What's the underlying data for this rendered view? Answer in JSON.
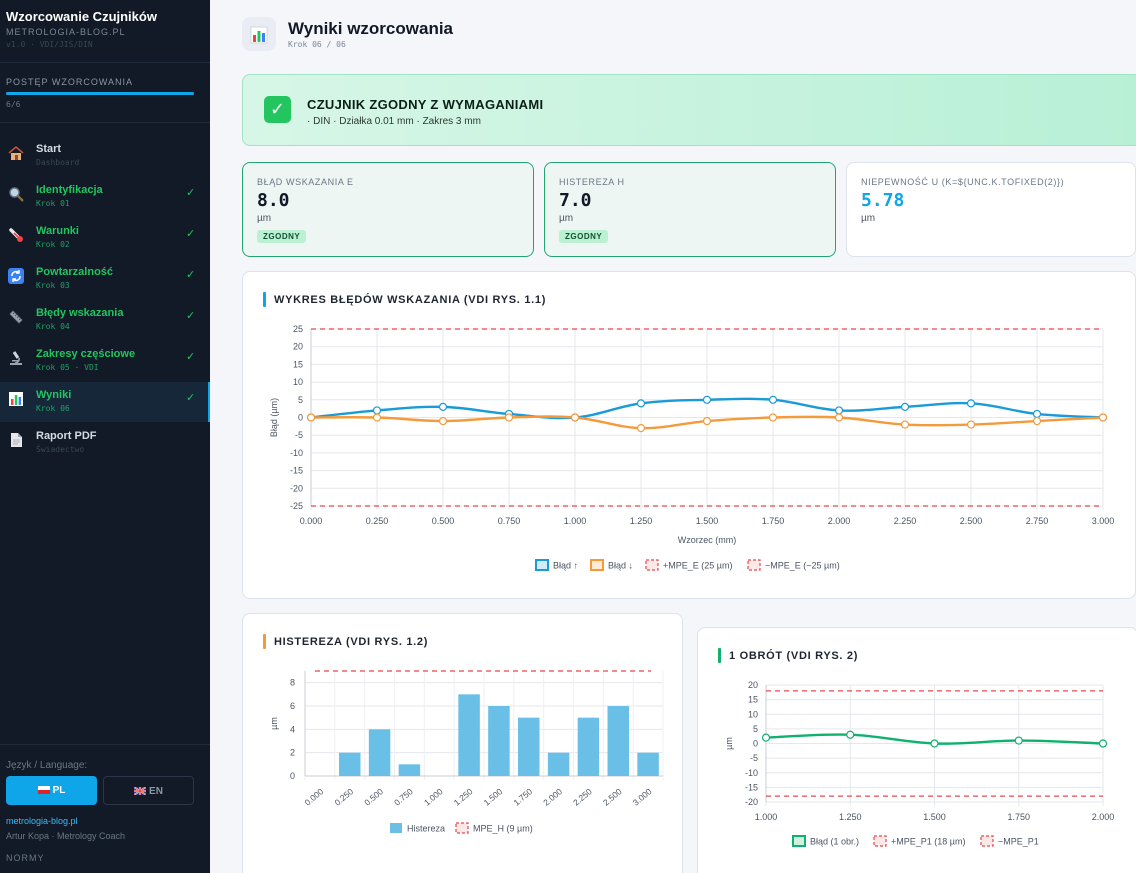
{
  "app": {
    "title": "Wzorcowanie Czujników",
    "site": "METROLOGIA-BLOG.PL",
    "version": "v1.0 · VDI/JIS/DIN"
  },
  "progress": {
    "label": "POSTĘP WZORCOWANIA",
    "text": "6/6",
    "fraction": 1.0
  },
  "nav": [
    {
      "label": "Start",
      "sub": "Dashboard",
      "icon": "house-icon",
      "done": false,
      "active": false
    },
    {
      "label": "Identyfikacja",
      "sub": "Krok 01",
      "icon": "magnifier-icon",
      "done": true,
      "active": false
    },
    {
      "label": "Warunki",
      "sub": "Krok 02",
      "icon": "thermometer-icon",
      "done": true,
      "active": false
    },
    {
      "label": "Powtarzalność",
      "sub": "Krok 03",
      "icon": "repeat-icon",
      "done": true,
      "active": false
    },
    {
      "label": "Błędy wskazania",
      "sub": "Krok 04",
      "icon": "ruler-icon",
      "done": true,
      "active": false
    },
    {
      "label": "Zakresy częściowe",
      "sub": "Krok 05 · VDI",
      "icon": "microscope-icon",
      "done": true,
      "active": false
    },
    {
      "label": "Wyniki",
      "sub": "Krok 06",
      "icon": "bar-chart-icon",
      "done": true,
      "active": true
    },
    {
      "label": "Raport PDF",
      "sub": "Świadectwo",
      "icon": "document-icon",
      "done": false,
      "active": false
    }
  ],
  "nav_check": "✓",
  "language": {
    "label": "Język / Language:",
    "pl": "PL",
    "en": "EN",
    "selected": "PL"
  },
  "footer": {
    "link": "metrologia-blog.pl",
    "author": "Artur Kopa · Metrology Coach",
    "normy": "NORMY"
  },
  "header": {
    "title": "Wyniki wzorcowania",
    "step": "Krok 06 / 06"
  },
  "banner": {
    "title": "CZUJNIK ZGODNY Z WYMAGANIAMI",
    "sub": "· DIN · Działka 0.01 mm · Zakres 3 mm",
    "icon": "check-mark-icon",
    "icon_glyph": "✓"
  },
  "metrics": [
    {
      "label": "Błąd wskazania E",
      "value": "8.0",
      "unit": "µm",
      "badge": "ZGODNY",
      "status": "ok"
    },
    {
      "label": "Histereza H",
      "value": "7.0",
      "unit": "µm",
      "badge": "ZGODNY",
      "status": "ok"
    },
    {
      "label": "Niepewność U (k=${unc.k.toFixed(2)})",
      "value": "5.78",
      "unit": "µm",
      "badge": "",
      "status": "info"
    }
  ],
  "colors": {
    "accent": "#0ea5e9",
    "orange": "#f59a3b",
    "green": "#10b06f",
    "mpe": "#e5484d",
    "hyst": "#69bfe6"
  },
  "charts": {
    "errors_title": "WYKRES BŁĘDÓW WSKAZANIA (VDI RYS. 1.1)",
    "hyst_title": "HISTEREZA (VDI RYS. 1.2)",
    "rev_title": "1 OBRÓT (VDI RYS. 2)"
  },
  "chart_data": [
    {
      "type": "line",
      "title": "WYKRES BŁĘDÓW WSKAZANIA (VDI RYS. 1.1)",
      "xlabel": "Wzorzec (mm)",
      "ylabel": "Błąd (µm)",
      "x": [
        0,
        0.25,
        0.5,
        0.75,
        1.0,
        1.25,
        1.5,
        1.75,
        2.0,
        2.25,
        2.5,
        2.75,
        3.0
      ],
      "x_ticks": [
        "0.000",
        "0.250",
        "0.500",
        "0.750",
        "1.000",
        "1.250",
        "1.500",
        "1.750",
        "2.000",
        "2.250",
        "2.500",
        "2.750",
        "3.000"
      ],
      "ylim": [
        -25,
        25
      ],
      "y_ticks": [
        25,
        20,
        15,
        10,
        5,
        0,
        -5,
        -10,
        -15,
        -20,
        -25
      ],
      "series": [
        {
          "name": "Błąd ↑",
          "color": "#1a9ad9",
          "values": [
            0,
            2,
            3,
            1,
            0,
            4,
            5,
            5,
            2,
            3,
            4,
            1,
            0
          ]
        },
        {
          "name": "Błąd ↓",
          "color": "#f59a3b",
          "values": [
            0,
            0,
            -1,
            0,
            0,
            -3,
            -1,
            0,
            0,
            -2,
            -2,
            -1,
            0
          ]
        }
      ],
      "limits": [
        {
          "name": "+MPE_E (25 µm)",
          "value": 25
        },
        {
          "name": "−MPE_E (−25 µm)",
          "value": -25
        }
      ],
      "legend": "bottom",
      "grid": true
    },
    {
      "type": "bar",
      "title": "HISTEREZA (VDI RYS. 1.2)",
      "ylabel": "µm",
      "categories": [
        "0.000",
        "0.250",
        "0.500",
        "0.750",
        "1.000",
        "1.250",
        "1.500",
        "1.750",
        "2.000",
        "2.250",
        "2.500",
        "3.000"
      ],
      "values": [
        0,
        2,
        4,
        1,
        0,
        7,
        6,
        5,
        2,
        5,
        6,
        2
      ],
      "series_name": "Histereza",
      "limit": {
        "name": "MPE_H (9 µm)",
        "value": 9
      },
      "ylim": [
        0,
        9
      ],
      "y_ticks": [
        8,
        6,
        4,
        2,
        0
      ],
      "legend": "bottom",
      "grid": true
    },
    {
      "type": "line",
      "title": "1 OBRÓT (VDI RYS. 2)",
      "ylabel": "µm",
      "x": [
        1.0,
        1.25,
        1.5,
        1.75,
        2.0
      ],
      "x_ticks": [
        "1.000",
        "1.250",
        "1.500",
        "1.750",
        "2.000"
      ],
      "ylim": [
        -20,
        20
      ],
      "y_ticks": [
        20,
        15,
        10,
        5,
        0,
        -5,
        -10,
        -15,
        -20
      ],
      "series": [
        {
          "name": "Błąd (1 obr.)",
          "color": "#10b06f",
          "values": [
            2,
            3,
            0,
            1,
            0
          ]
        }
      ],
      "limits": [
        {
          "name": "+MPE_P1 (18 µm)",
          "value": 18
        },
        {
          "name": "−MPE_P1",
          "value": -18
        }
      ],
      "legend": "bottom",
      "grid": true
    }
  ]
}
